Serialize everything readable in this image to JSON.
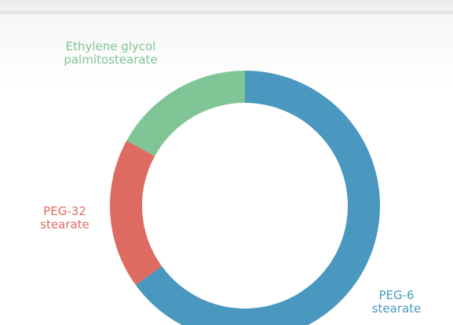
{
  "chart_data": {
    "type": "pie",
    "donut": true,
    "categories": [
      "PEG-6 stearate",
      "PEG-32 stearate",
      "Ethylene glycol palmitostearate"
    ],
    "values": [
      65,
      18,
      17
    ],
    "colors": [
      "#4a97bf",
      "#de6b61",
      "#80c595"
    ]
  }
}
